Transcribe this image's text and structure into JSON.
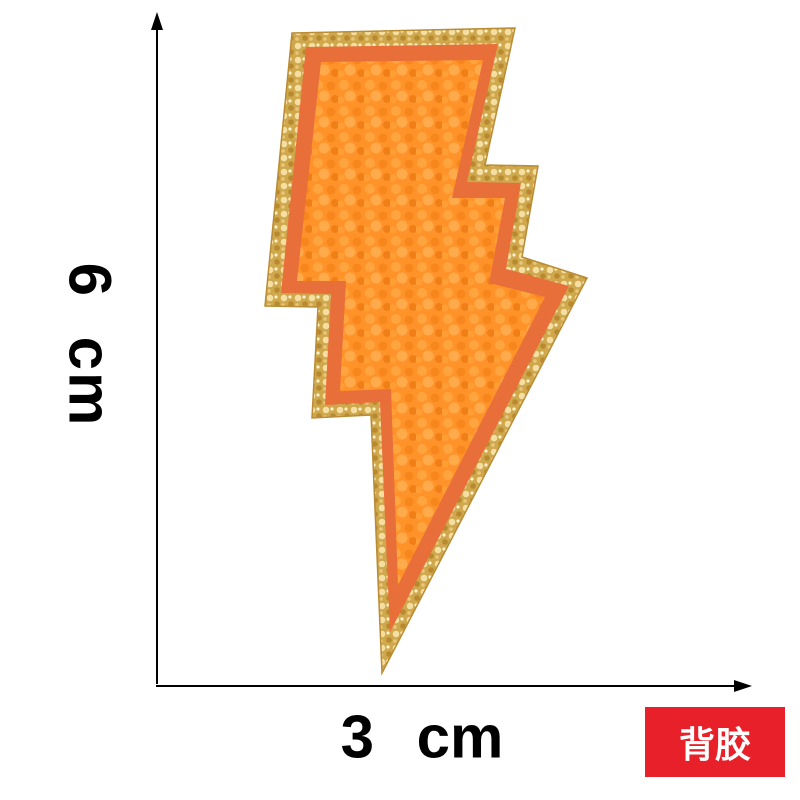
{
  "dimensions": {
    "height_label": "6 cm",
    "width_label": "3 cm"
  },
  "badge": {
    "text": "背胶",
    "color": "#e8202a"
  },
  "patch": {
    "shape": "lightning-bolt",
    "colors": {
      "border": "#d8b35a",
      "felt": "#e96f3a",
      "chenille": "#ff8f24"
    }
  }
}
